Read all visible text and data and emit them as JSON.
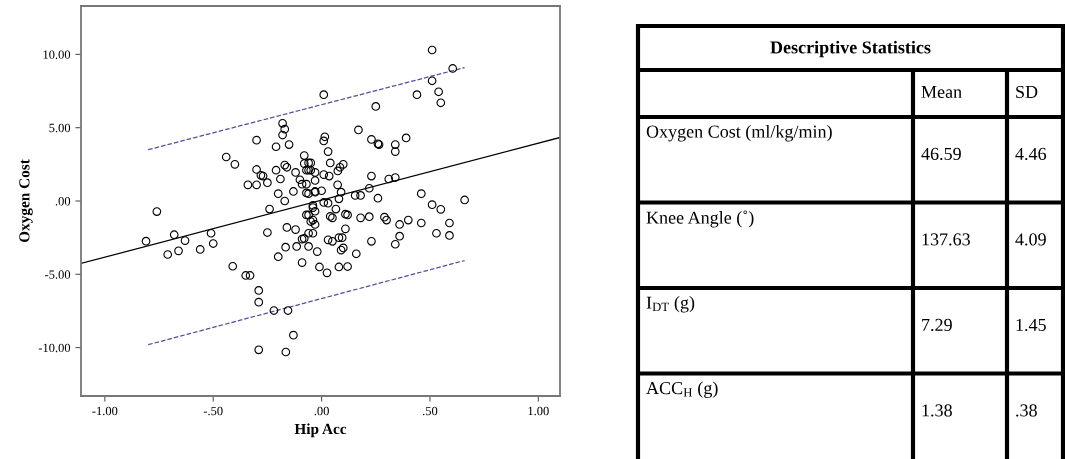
{
  "chart_data": [
    {
      "type": "scatter",
      "xlabel": "Hip Acc",
      "ylabel": "Oxygen Cost",
      "xlim": [
        -1.11,
        1.1
      ],
      "ylim": [
        -13.3,
        13.3
      ],
      "xticks": [
        {
          "value": -1,
          "label": "-1.00"
        },
        {
          "value": -0.5,
          "label": "-.50"
        },
        {
          "value": 0,
          "label": ".00"
        },
        {
          "value": 0.5,
          "label": ".50"
        },
        {
          "value": 1,
          "label": "1.00"
        }
      ],
      "yticks": [
        {
          "value": -10,
          "label": "-10.00"
        },
        {
          "value": -5,
          "label": "-5.00"
        },
        {
          "value": 0,
          "label": ".00"
        },
        {
          "value": 5,
          "label": "5.00"
        },
        {
          "value": 10,
          "label": "10.00"
        }
      ],
      "series": [
        {
          "type": "scatter",
          "color": "#000000",
          "marker": "circle",
          "x": [
            -0.76,
            -0.68,
            -0.51,
            -0.3,
            -0.44,
            -0.4,
            -0.18,
            -0.17,
            -0.18,
            -0.15,
            -0.21,
            -0.08,
            -0.3,
            -0.28,
            -0.27,
            -0.25,
            -0.34,
            -0.3,
            -0.21,
            -0.19,
            -0.17,
            -0.16,
            -0.12,
            -0.08,
            -0.05,
            -0.07,
            -0.06,
            -0.03,
            -0.1,
            -0.09,
            -0.07,
            -0.03,
            -0.13,
            -0.07,
            -0.03,
            -0.2,
            -0.17,
            -0.24,
            -0.04,
            -0.04,
            -0.03,
            -0.07,
            -0.04,
            -0.16,
            -0.12,
            -0.25,
            -0.04,
            -0.08,
            0.51,
            0.605,
            0.51,
            0.54,
            0.55,
            0.44,
            0.01,
            0.25,
            0.17,
            0.23,
            0.26,
            0.265,
            0.34,
            0.34,
            0.39,
            0.015,
            0.01,
            0.03,
            0.04,
            0.1,
            0.085,
            0.075,
            0.01,
            0.035,
            0.23,
            0.31,
            0.34,
            0.22,
            0.26,
            0.155,
            0.18,
            0.46,
            0.51,
            0.55,
            0.66,
            0.074,
            0.09,
            0.0,
            -0.03,
            -0.06,
            -0.05,
            -0.06,
            0.01,
            0.03,
            0.08,
            0.066,
            0.11,
            0.12,
            -0.06,
            0.04,
            0.05,
            0.18,
            0.22,
            0.29,
            0.3,
            0.4,
            0.46,
            0.36,
            0.59,
            0.11,
            -0.06,
            0.08,
            0.53,
            0.59,
            0.36,
            0.34,
            0.23,
            0.16,
            0.095,
            0.1,
            0.09,
            0.03,
            0.05,
            -0.02,
            -0.06,
            -0.09,
            -0.09,
            -0.01,
            0.025,
            0.08,
            0.12,
            -0.81,
            -0.63,
            -0.71,
            -0.66,
            -0.56,
            -0.5,
            -0.41,
            -0.35,
            -0.33,
            -0.29,
            -0.29,
            -0.22,
            -0.155,
            -0.13,
            -0.29,
            -0.165,
            -0.166,
            -0.115,
            -0.2,
            -0.05,
            -0.03
          ],
          "values": [
            -0.72,
            -2.3,
            -2.2,
            4.15,
            3.0,
            2.5,
            5.3,
            4.9,
            4.5,
            3.85,
            3.7,
            3.1,
            2.15,
            1.75,
            1.7,
            1.25,
            1.1,
            1.1,
            2.1,
            1.5,
            2.45,
            2.3,
            1.95,
            2.55,
            2.6,
            2.1,
            2.1,
            1.95,
            1.45,
            1.15,
            1.15,
            1.4,
            0.65,
            0.55,
            0.65,
            0.5,
            0.0,
            -0.55,
            -0.3,
            -0.45,
            -0.7,
            -0.95,
            -1.3,
            -1.8,
            -1.95,
            -2.15,
            -2.2,
            -2.55,
            10.3,
            9.04,
            8.2,
            7.45,
            6.7,
            7.25,
            7.25,
            6.45,
            4.85,
            4.2,
            3.9,
            3.85,
            3.85,
            3.37,
            4.3,
            4.38,
            4.1,
            3.37,
            2.6,
            2.5,
            2.3,
            2.05,
            1.8,
            1.7,
            1.7,
            1.5,
            1.6,
            0.87,
            0.19,
            0.38,
            0.38,
            0.5,
            -0.25,
            -0.57,
            0.07,
            1.1,
            0.6,
            0.7,
            0.6,
            0.5,
            2.1,
            2.6,
            -0.1,
            -0.15,
            0.15,
            -0.55,
            -0.9,
            -0.95,
            -0.95,
            -1.05,
            -1.15,
            -1.15,
            -1.07,
            -1.1,
            -1.3,
            -1.3,
            -1.5,
            -1.6,
            -1.5,
            -1.9,
            -2.2,
            -2.5,
            -2.2,
            -2.35,
            -2.4,
            -2.95,
            -2.75,
            -3.6,
            -2.5,
            -3.2,
            -3.35,
            -2.65,
            -2.75,
            -3.45,
            -3.1,
            -2.6,
            -4.2,
            -4.5,
            -4.9,
            -4.5,
            -4.47,
            -2.74,
            -2.7,
            -3.65,
            -3.4,
            -3.3,
            -2.9,
            -4.45,
            -5.08,
            -5.08,
            -6.1,
            -6.9,
            -7.47,
            -7.47,
            -9.15,
            -10.15,
            -10.3,
            -3.15,
            -3.1,
            -3.8,
            -1.4,
            -1.6
          ]
        },
        {
          "type": "line",
          "color": "#000000",
          "line_style": "solid",
          "x": [
            -1.11,
            1.1
          ],
          "values": [
            -4.26,
            4.33
          ]
        },
        {
          "type": "line",
          "color": "#5050a0",
          "line_style": "dashed",
          "x": [
            -0.8,
            0.66
          ],
          "values": [
            3.5,
            9.1
          ]
        },
        {
          "type": "line",
          "color": "#5050a0",
          "line_style": "dashed",
          "x": [
            -0.8,
            0.66
          ],
          "values": [
            -9.8,
            -4.06
          ]
        }
      ]
    },
    {
      "type": "other",
      "title": "Descriptive Statistics",
      "categories": [
        "Oxygen Cost (ml/kg/min)",
        "Knee Angle (˚)",
        "I$_{DT}$ (g)",
        "ACC$_{H}$ (g)"
      ],
      "series": [
        {
          "name": "Mean",
          "values": [
            46.59,
            137.63,
            7.29,
            1.38
          ],
          "value_labels": [
            "46.59",
            "137.63",
            "7.29",
            "1.38"
          ]
        },
        {
          "name": "SD",
          "values": [
            4.46,
            4.09,
            1.45,
            0.38
          ],
          "value_labels": [
            "4.46",
            "4.09",
            "1.45",
            ".38"
          ]
        }
      ]
    }
  ]
}
